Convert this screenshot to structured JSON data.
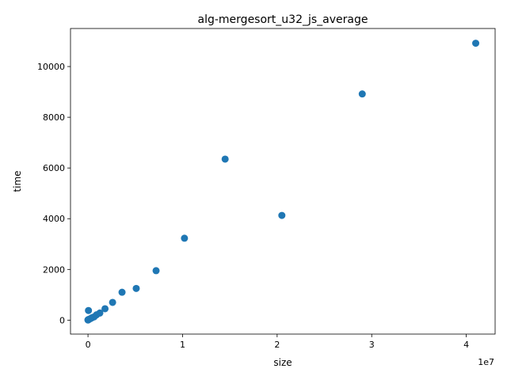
{
  "chart_data": {
    "type": "scatter",
    "title": "alg-mergesort_u32_js_average",
    "xlabel": "size",
    "ylabel": "time",
    "x_offset_label": "1e7",
    "xlim": [
      -1850000,
      43050000
    ],
    "ylim": [
      -550,
      11500
    ],
    "x_tick_values": [
      0,
      10000000,
      20000000,
      30000000,
      40000000
    ],
    "x_tick_labels": [
      "0",
      "1",
      "2",
      "3",
      "4"
    ],
    "y_tick_values": [
      0,
      2000,
      4000,
      6000,
      8000,
      10000
    ],
    "y_tick_labels": [
      "0",
      "2000",
      "4000",
      "6000",
      "8000",
      "10000"
    ],
    "grid": false,
    "marker_color": "#1f77b4",
    "points": [
      {
        "x": 1000,
        "y": 5
      },
      {
        "x": 5000,
        "y": 10
      },
      {
        "x": 20000,
        "y": 15
      },
      {
        "x": 60000,
        "y": 25
      },
      {
        "x": 100000,
        "y": 30
      },
      {
        "x": 150000,
        "y": 40
      },
      {
        "x": 50000,
        "y": 380
      },
      {
        "x": 300000,
        "y": 70
      },
      {
        "x": 450000,
        "y": 100
      },
      {
        "x": 650000,
        "y": 130
      },
      {
        "x": 900000,
        "y": 210
      },
      {
        "x": 1250000,
        "y": 280
      },
      {
        "x": 1800000,
        "y": 450
      },
      {
        "x": 2600000,
        "y": 700
      },
      {
        "x": 3600000,
        "y": 1100
      },
      {
        "x": 5100000,
        "y": 1250
      },
      {
        "x": 7200000,
        "y": 1950
      },
      {
        "x": 10200000,
        "y": 3230
      },
      {
        "x": 14500000,
        "y": 6350
      },
      {
        "x": 20500000,
        "y": 4130
      },
      {
        "x": 29000000,
        "y": 8920
      },
      {
        "x": 41000000,
        "y": 10920
      }
    ]
  }
}
